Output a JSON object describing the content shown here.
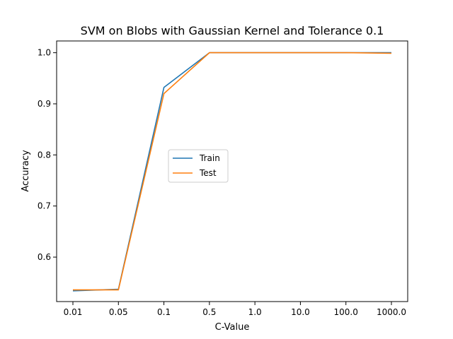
{
  "chart_data": {
    "type": "line",
    "title": "SVM on Blobs with Gaussian Kernel and Tolerance 0.1",
    "xlabel": "C-Value",
    "ylabel": "Accuracy",
    "categories": [
      "0.01",
      "0.05",
      "0.1",
      "0.5",
      "1.0",
      "10.0",
      "100.0",
      "1000.0"
    ],
    "ylim": [
      0.513,
      1.023
    ],
    "yticks": [
      "0.6",
      "0.7",
      "0.8",
      "0.9",
      "1.0"
    ],
    "series": [
      {
        "name": "Train",
        "color": "#1f77b4",
        "values": [
          0.534,
          0.537,
          0.932,
          1.0,
          1.0,
          1.0,
          1.0,
          1.0
        ]
      },
      {
        "name": "Test",
        "color": "#ff7f0e",
        "values": [
          0.536,
          0.536,
          0.92,
          1.0,
          1.0,
          1.0,
          1.0,
          0.999
        ]
      }
    ],
    "legend": "center"
  }
}
